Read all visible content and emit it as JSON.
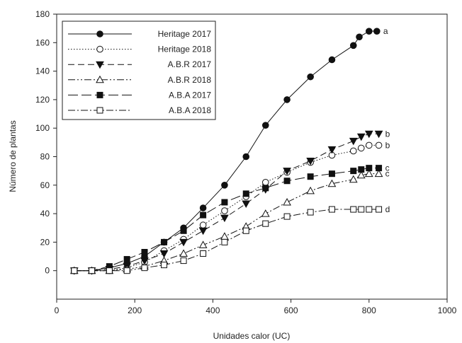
{
  "chart_data": {
    "type": "line",
    "title": "",
    "xlabel": "Unidades calor (UC)",
    "ylabel": "Número de plantas",
    "xlim": [
      0,
      1000
    ],
    "ylim": [
      -20,
      180
    ],
    "xticks": [
      0,
      200,
      400,
      600,
      800,
      1000
    ],
    "yticks": [
      0,
      20,
      40,
      60,
      80,
      100,
      120,
      140,
      160,
      180
    ],
    "grid": false,
    "legend_position": "top-left",
    "series": [
      {
        "name": "Heritage 2017",
        "marker": "circle",
        "filled": true,
        "line_style": "solid",
        "x": [
          45,
          90,
          135,
          180,
          225,
          275,
          325,
          375,
          430,
          485,
          535,
          590,
          650,
          705,
          760,
          775,
          800,
          820
        ],
        "y": [
          0,
          0,
          2,
          5,
          10,
          20,
          30,
          44,
          60,
          80,
          102,
          120,
          136,
          148,
          158,
          164,
          168,
          168
        ],
        "end_label": "a"
      },
      {
        "name": "Heritage 2018",
        "marker": "circle",
        "filled": false,
        "line_style": "dotted",
        "x": [
          45,
          90,
          135,
          180,
          225,
          275,
          325,
          375,
          430,
          485,
          535,
          590,
          650,
          705,
          760,
          780,
          800,
          825
        ],
        "y": [
          0,
          0,
          0,
          2,
          6,
          14,
          22,
          32,
          42,
          52,
          62,
          69,
          76,
          81,
          84,
          86,
          88,
          88
        ],
        "end_label": "b"
      },
      {
        "name": "A.B.R 2017",
        "marker": "triangle-down",
        "filled": true,
        "line_style": "dashed",
        "x": [
          45,
          90,
          135,
          180,
          225,
          275,
          325,
          375,
          430,
          485,
          535,
          590,
          650,
          705,
          760,
          780,
          800,
          825
        ],
        "y": [
          0,
          0,
          1,
          3,
          7,
          12,
          20,
          28,
          37,
          47,
          57,
          70,
          77,
          85,
          91,
          94,
          96,
          96
        ],
        "end_label": "b"
      },
      {
        "name": "A.B.R 2018",
        "marker": "triangle-up",
        "filled": false,
        "line_style": "dash-dot-dot",
        "x": [
          45,
          90,
          135,
          180,
          225,
          275,
          325,
          375,
          430,
          485,
          535,
          590,
          650,
          705,
          760,
          780,
          800,
          825
        ],
        "y": [
          0,
          0,
          0,
          1,
          3,
          7,
          12,
          18,
          24,
          31,
          40,
          48,
          56,
          61,
          64,
          67,
          68,
          68
        ],
        "end_label": "c"
      },
      {
        "name": "A.B.A 2017",
        "marker": "square",
        "filled": true,
        "line_style": "long-dash",
        "x": [
          45,
          90,
          135,
          180,
          225,
          275,
          325,
          375,
          430,
          485,
          535,
          590,
          650,
          705,
          760,
          780,
          800,
          825
        ],
        "y": [
          0,
          0,
          3,
          8,
          13,
          20,
          28,
          39,
          48,
          54,
          58,
          63,
          66,
          68,
          70,
          71,
          72,
          72
        ],
        "end_label": "c"
      },
      {
        "name": "A.B.A 2018",
        "marker": "square",
        "filled": false,
        "line_style": "dash-dot",
        "x": [
          45,
          90,
          135,
          180,
          225,
          275,
          325,
          375,
          430,
          485,
          535,
          590,
          650,
          705,
          760,
          780,
          800,
          825
        ],
        "y": [
          0,
          0,
          0,
          0,
          2,
          4,
          7,
          12,
          20,
          28,
          33,
          38,
          41,
          43,
          43,
          43,
          43,
          43
        ],
        "end_label": "d"
      }
    ]
  }
}
